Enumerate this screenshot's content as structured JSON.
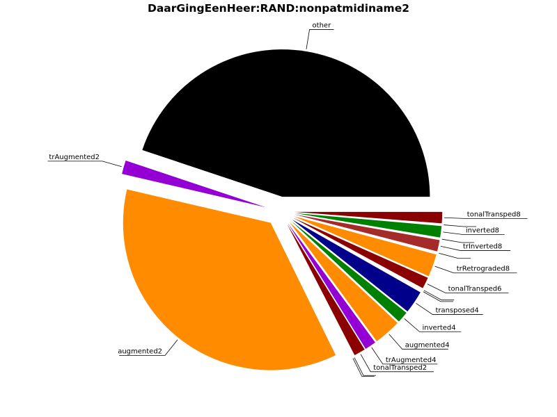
{
  "chart_data": {
    "type": "pie",
    "title": "DaarGingEenHeer:RAND:nonpatmidiname2",
    "slices": [
      {
        "label": "other",
        "value": 180,
        "color": "#000000"
      },
      {
        "label": "trAugmented2",
        "value": 6,
        "color": "#9400D3"
      },
      {
        "label": "augmented2",
        "value": 144,
        "color": "#FF8C00"
      },
      {
        "label": "",
        "value": 0.6,
        "color": "#FFFFFF"
      },
      {
        "label": "",
        "value": 0.6,
        "color": "#FFFFFF"
      },
      {
        "label": "tonalTransped2",
        "value": 5,
        "color": "#8B0000"
      },
      {
        "label": "trAugmented4",
        "value": 5,
        "color": "#9400D3"
      },
      {
        "label": "augmented4",
        "value": 12,
        "color": "#FF8C00"
      },
      {
        "label": "inverted4",
        "value": 5,
        "color": "#008000"
      },
      {
        "label": "transposed4",
        "value": 10,
        "color": "#00008B"
      },
      {
        "label": "",
        "value": 0.6,
        "color": "#FFFFFF"
      },
      {
        "label": "",
        "value": 0.6,
        "color": "#FFFFFF"
      },
      {
        "label": "tonalTransped6",
        "value": 5,
        "color": "#8B0000"
      },
      {
        "label": "trRetrograded8",
        "value": 10,
        "color": "#FF8C00"
      },
      {
        "label": "",
        "value": 0.6,
        "color": "#FFFFFF"
      },
      {
        "label": "trInverted8",
        "value": 5,
        "color": "#A52A2A"
      },
      {
        "label": "",
        "value": 0.6,
        "color": "#FFFFFF"
      },
      {
        "label": "inverted8",
        "value": 5,
        "color": "#008000"
      },
      {
        "label": "",
        "value": 0.6,
        "color": "#FFFFFF"
      },
      {
        "label": "tonalTransped8",
        "value": 5,
        "color": "#8B0000"
      }
    ]
  }
}
